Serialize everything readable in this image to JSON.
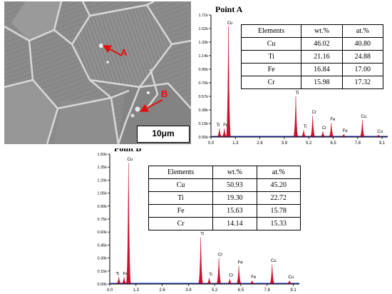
{
  "micrograph": {
    "label_a": "A",
    "label_b": "B",
    "scale_bar": "10μm"
  },
  "chart_data": [
    {
      "type": "line",
      "title": "Point A",
      "xlabel": "",
      "ylabel": "",
      "x_ticks": [
        "0.0",
        "1.3",
        "2.6",
        "3.9",
        "5.2",
        "6.5",
        "7.8",
        "9.1"
      ],
      "y_ticks": [
        "0.00k",
        "0.19k",
        "0.38k",
        "0.57k",
        "0.76k",
        "0.95k",
        "1.14k",
        "1.33k",
        "1.52k",
        "1.71k"
      ],
      "xlim": [
        0,
        9.4
      ],
      "ylim": [
        0,
        1.71
      ],
      "peaks": [
        {
          "label": "Ti",
          "x": 0.45,
          "y": 0.12
        },
        {
          "label": "Fe",
          "x": 0.71,
          "y": 0.12
        },
        {
          "label": "Cu",
          "x": 0.93,
          "y": 1.55
        },
        {
          "label": "Ti",
          "x": 4.51,
          "y": 0.57
        },
        {
          "label": "Ti",
          "x": 4.93,
          "y": 0.1
        },
        {
          "label": "Cr",
          "x": 5.41,
          "y": 0.3
        },
        {
          "label": "Cr",
          "x": 5.95,
          "y": 0.08
        },
        {
          "label": "Fe",
          "x": 6.4,
          "y": 0.2
        },
        {
          "label": "Fe",
          "x": 7.06,
          "y": 0.04
        },
        {
          "label": "Cu",
          "x": 8.05,
          "y": 0.24
        },
        {
          "label": "Cu",
          "x": 8.91,
          "y": 0.03
        }
      ],
      "table": {
        "headers": [
          "Elements",
          "wt.%",
          "at.%"
        ],
        "rows": [
          [
            "Cu",
            "46.02",
            "40.80"
          ],
          [
            "Ti",
            "21.16",
            "24.88"
          ],
          [
            "Fe",
            "16.84",
            "17.00"
          ],
          [
            "Cr",
            "15.98",
            "17.32"
          ]
        ]
      }
    },
    {
      "type": "line",
      "title": "Point B",
      "xlabel": "",
      "ylabel": "",
      "x_ticks": [
        "0.0",
        "1.3",
        "2.6",
        "3.9",
        "5.2",
        "6.5",
        "7.8",
        "9.1"
      ],
      "y_ticks": [
        "0.00k",
        "0.15k",
        "0.30k",
        "0.45k",
        "0.60k",
        "0.75k",
        "0.90k",
        "1.05k",
        "1.20k",
        "1.35k",
        "1.50k"
      ],
      "xlim": [
        0,
        9.4
      ],
      "ylim": [
        0,
        1.5
      ],
      "peaks": [
        {
          "label": "Ti",
          "x": 0.45,
          "y": 0.08
        },
        {
          "label": "Fe",
          "x": 0.71,
          "y": 0.08
        },
        {
          "label": "Cu",
          "x": 0.93,
          "y": 1.4
        },
        {
          "label": "Ti",
          "x": 4.51,
          "y": 0.54
        },
        {
          "label": "Ti",
          "x": 4.93,
          "y": 0.07
        },
        {
          "label": "Cr",
          "x": 5.41,
          "y": 0.3
        },
        {
          "label": "Cr",
          "x": 5.95,
          "y": 0.06
        },
        {
          "label": "Fe",
          "x": 6.4,
          "y": 0.21
        },
        {
          "label": "Fe",
          "x": 7.06,
          "y": 0.04
        },
        {
          "label": "Cu",
          "x": 8.05,
          "y": 0.23
        },
        {
          "label": "Cu",
          "x": 8.91,
          "y": 0.04
        }
      ],
      "table": {
        "headers": [
          "Elements",
          "wt.%",
          "at.%"
        ],
        "rows": [
          [
            "Cu",
            "50.93",
            "45.20"
          ],
          [
            "Ti",
            "19.30",
            "22.72"
          ],
          [
            "Fe",
            "15.63",
            "15.78"
          ],
          [
            "Cr",
            "14.14",
            "15.33"
          ]
        ]
      }
    }
  ],
  "colors": {
    "peak_fill": "#c8102e",
    "baseline": "#2233cc",
    "axis": "#000000"
  }
}
